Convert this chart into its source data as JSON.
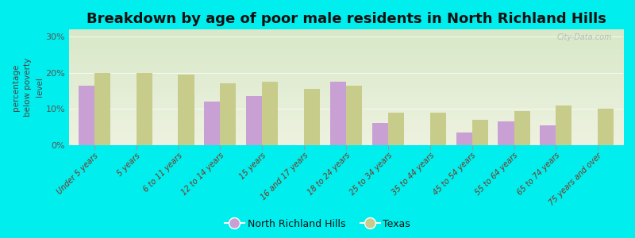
{
  "title": "Breakdown by age of poor male residents in North Richland Hills",
  "categories": [
    "Under 5 years",
    "5 years",
    "6 to 11 years",
    "12 to 14 years",
    "15 years",
    "16 and 17 years",
    "18 to 24 years",
    "25 to 34 years",
    "35 to 44 years",
    "45 to 54 years",
    "55 to 64 years",
    "65 to 74 years",
    "75 years and over"
  ],
  "nrh_values": [
    16.5,
    0,
    0,
    12.0,
    13.5,
    0,
    17.5,
    6.0,
    0,
    3.5,
    6.5,
    5.5,
    0
  ],
  "texas_values": [
    20.0,
    20.0,
    19.5,
    17.0,
    17.5,
    15.5,
    16.5,
    9.0,
    9.0,
    7.0,
    9.5,
    11.0,
    10.0
  ],
  "nrh_color": "#c8a0d4",
  "texas_color": "#c8cc8a",
  "ylabel": "percentage\nbelow poverty\nlevel",
  "ylim": [
    0,
    32
  ],
  "yticks": [
    0,
    10,
    20,
    30
  ],
  "ytick_labels": [
    "0%",
    "10%",
    "20%",
    "30%"
  ],
  "figure_bg": "#00eeee",
  "plot_bg_colors": [
    "#d8e8c8",
    "#eef2e0"
  ],
  "title_fontsize": 13,
  "bar_width": 0.38,
  "legend_nrh": "North Richland Hills",
  "legend_texas": "Texas",
  "watermark": "City-Data.com"
}
